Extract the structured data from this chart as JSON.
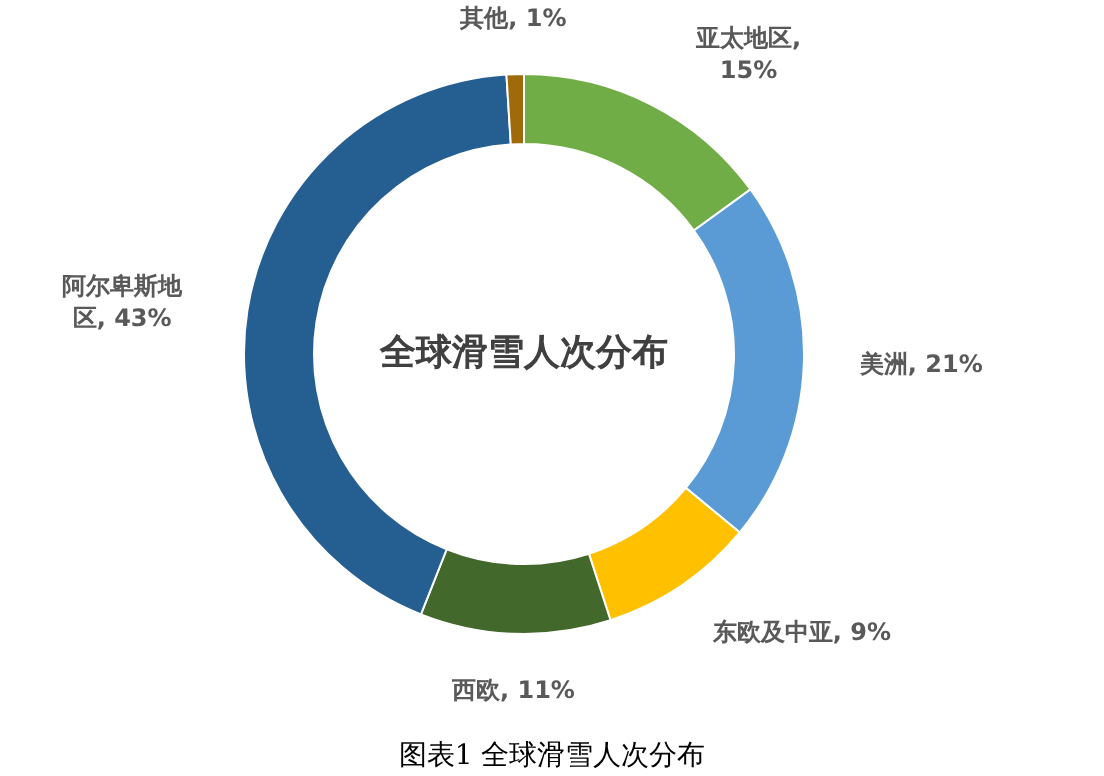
{
  "chart_data": {
    "type": "donut",
    "title": "全球滑雪人次分布",
    "annotations": [
      "图表1 全球滑雪人次分布"
    ],
    "categories": [
      "亚太地区",
      "美洲",
      "东欧及中亚",
      "西欧",
      "阿尔卑斯地区",
      "其他"
    ],
    "values": [
      15,
      21,
      9,
      11,
      43,
      1
    ],
    "colors": [
      "#70ad47",
      "#5b9bd5",
      "#ffc000",
      "#43682b",
      "#255e91",
      "#9e6a0a"
    ],
    "value_labels": [
      ", 15%",
      ", 21%",
      ", 9%",
      ", 11%",
      ", 43%",
      ", 1%"
    ],
    "legend": false
  }
}
